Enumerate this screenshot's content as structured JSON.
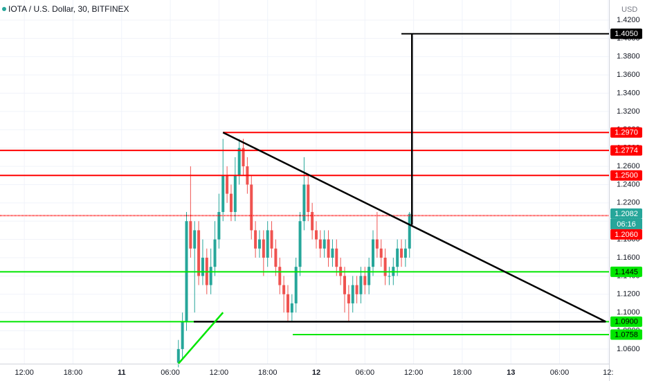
{
  "chart_data": {
    "type": "candlestick",
    "title": "IOTA / U.S. Dollar, 30, BITFINEX",
    "y_axis_label": "USD",
    "grid": true,
    "up_color": "#26a69a",
    "down_color": "#ef5350",
    "xlim": [
      9.0,
      84.1
    ],
    "ylim": [
      1.044,
      1.442
    ],
    "xticks": [
      {
        "value": 12,
        "label": "12:00"
      },
      {
        "value": 18,
        "label": "18:00"
      },
      {
        "value": 24,
        "label": "11"
      },
      {
        "value": 30,
        "label": "06:00"
      },
      {
        "value": 36,
        "label": "12:00"
      },
      {
        "value": 42,
        "label": "18:00"
      },
      {
        "value": 48,
        "label": "12"
      },
      {
        "value": 54,
        "label": "06:00"
      },
      {
        "value": 60,
        "label": "12:00"
      },
      {
        "value": 66,
        "label": "18:00"
      },
      {
        "value": 72,
        "label": "13"
      },
      {
        "value": 78,
        "label": "06:00"
      },
      {
        "value": 84,
        "label": "12:"
      }
    ],
    "yticks": [
      {
        "value": 1.06,
        "label": "1.0600"
      },
      {
        "value": 1.08,
        "label": "1.0800"
      },
      {
        "value": 1.1,
        "label": "1.1000"
      },
      {
        "value": 1.12,
        "label": "1.1200"
      },
      {
        "value": 1.14,
        "label": "1.1400"
      },
      {
        "value": 1.16,
        "label": "1.1600"
      },
      {
        "value": 1.18,
        "label": "1.1800"
      },
      {
        "value": 1.2,
        "label": "1.2000"
      },
      {
        "value": 1.22,
        "label": "1.2200"
      },
      {
        "value": 1.24,
        "label": "1.2400"
      },
      {
        "value": 1.26,
        "label": "1.2600"
      },
      {
        "value": 1.28,
        "label": "1.2800"
      },
      {
        "value": 1.3,
        "label": "1.3000"
      },
      {
        "value": 1.32,
        "label": "1.3200"
      },
      {
        "value": 1.34,
        "label": "1.3400"
      },
      {
        "value": 1.36,
        "label": "1.3600"
      },
      {
        "value": 1.38,
        "label": "1.3800"
      },
      {
        "value": 1.4,
        "label": "1.4000"
      },
      {
        "value": 1.42,
        "label": "1.4200"
      }
    ],
    "x": [
      31,
      31.5,
      32,
      32.5,
      33,
      33.5,
      34,
      34.5,
      35,
      35.5,
      36,
      36.5,
      37,
      37.5,
      38,
      38.5,
      39,
      39.5,
      40,
      40.5,
      41,
      41.5,
      42,
      42.5,
      43,
      43.5,
      44,
      44.5,
      45,
      45.5,
      46,
      46.5,
      47,
      47.5,
      48,
      48.5,
      49,
      49.5,
      50,
      50.5,
      51,
      51.5,
      52,
      52.5,
      53,
      53.5,
      54,
      54.5,
      55,
      55.5,
      56,
      56.5,
      57,
      57.5,
      58,
      58.5,
      59,
      59.5
    ],
    "open": [
      1.045,
      1.06,
      1.09,
      1.2,
      1.17,
      1.19,
      1.14,
      1.16,
      1.13,
      1.15,
      1.18,
      1.21,
      1.25,
      1.23,
      1.21,
      1.25,
      1.28,
      1.26,
      1.24,
      1.19,
      1.17,
      1.18,
      1.16,
      1.19,
      1.17,
      1.15,
      1.13,
      1.12,
      1.1,
      1.11,
      1.15,
      1.2,
      1.24,
      1.21,
      1.19,
      1.18,
      1.17,
      1.18,
      1.16,
      1.17,
      1.15,
      1.14,
      1.12,
      1.11,
      1.13,
      1.12,
      1.14,
      1.13,
      1.15,
      1.18,
      1.17,
      1.16,
      1.14,
      1.14,
      1.15,
      1.17,
      1.16,
      1.17
    ],
    "high": [
      1.07,
      1.1,
      1.21,
      1.26,
      1.2,
      1.2,
      1.18,
      1.17,
      1.17,
      1.2,
      1.23,
      1.29,
      1.26,
      1.24,
      1.27,
      1.29,
      1.29,
      1.27,
      1.25,
      1.2,
      1.19,
      1.19,
      1.2,
      1.2,
      1.18,
      1.16,
      1.14,
      1.13,
      1.12,
      1.16,
      1.21,
      1.27,
      1.25,
      1.22,
      1.2,
      1.19,
      1.19,
      1.19,
      1.18,
      1.18,
      1.16,
      1.15,
      1.13,
      1.14,
      1.14,
      1.15,
      1.15,
      1.16,
      1.19,
      1.21,
      1.18,
      1.17,
      1.15,
      1.16,
      1.18,
      1.18,
      1.18,
      1.21
    ],
    "low": [
      1.04,
      1.05,
      1.08,
      1.16,
      1.1,
      1.13,
      1.13,
      1.12,
      1.12,
      1.14,
      1.17,
      1.2,
      1.22,
      1.2,
      1.2,
      1.24,
      1.25,
      1.23,
      1.18,
      1.16,
      1.16,
      1.14,
      1.15,
      1.16,
      1.14,
      1.12,
      1.1,
      1.09,
      1.09,
      1.1,
      1.14,
      1.19,
      1.2,
      1.18,
      1.17,
      1.16,
      1.16,
      1.15,
      1.15,
      1.14,
      1.13,
      1.1,
      1.09,
      1.1,
      1.11,
      1.11,
      1.12,
      1.12,
      1.14,
      1.16,
      1.15,
      1.13,
      1.13,
      1.13,
      1.14,
      1.15,
      1.15,
      1.16
    ],
    "close": [
      1.06,
      1.09,
      1.2,
      1.17,
      1.19,
      1.14,
      1.16,
      1.13,
      1.15,
      1.18,
      1.21,
      1.25,
      1.23,
      1.21,
      1.25,
      1.28,
      1.26,
      1.24,
      1.19,
      1.17,
      1.18,
      1.16,
      1.19,
      1.17,
      1.15,
      1.13,
      1.12,
      1.1,
      1.11,
      1.15,
      1.2,
      1.24,
      1.21,
      1.19,
      1.18,
      1.17,
      1.18,
      1.16,
      1.17,
      1.15,
      1.14,
      1.12,
      1.11,
      1.13,
      1.12,
      1.14,
      1.13,
      1.15,
      1.18,
      1.17,
      1.16,
      1.14,
      1.14,
      1.15,
      1.17,
      1.16,
      1.17,
      1.208
    ],
    "last_price": {
      "value": 1.2082,
      "label": "1.2082",
      "color": "#26a69a",
      "countdown": "06:16"
    },
    "levels": [
      {
        "value": 1.405,
        "label": "1.4050",
        "color": "#000000",
        "text_color": "#ffffff",
        "from": 58.5
      },
      {
        "value": 1.297,
        "label": "1.2970",
        "color": "#ff0000",
        "text_color": "#ffffff",
        "from": 36.5
      },
      {
        "value": 1.2774,
        "label": "1.2774",
        "color": "#ff0000",
        "text_color": "#ffffff"
      },
      {
        "value": 1.25,
        "label": "1.2500",
        "color": "#ff0000",
        "text_color": "#ffffff"
      },
      {
        "value": 1.206,
        "label": "1.2060",
        "color": "#ff0000",
        "text_color": "#ffffff",
        "style": "dotted"
      },
      {
        "value": 1.1445,
        "label": "1.1445",
        "color": "#00e600",
        "text_color": "#000000"
      },
      {
        "value": 1.09,
        "label": "1.0900",
        "color": "#00e600",
        "text_color": "#000000"
      },
      {
        "value": 1.0758,
        "label": "1.0758",
        "color": "#00e600",
        "text_color": "#000000",
        "from": 45.1
      }
    ],
    "drawings": [
      {
        "color": "#000000",
        "x": [
          36.5,
          83.7
        ],
        "y": [
          1.297,
          1.09
        ]
      },
      {
        "color": "#000000",
        "x": [
          32.9,
          83.7
        ],
        "y": [
          1.09,
          1.09
        ]
      },
      {
        "color": "#000000",
        "x": [
          59.8,
          59.8
        ],
        "y": [
          1.196,
          1.405
        ]
      },
      {
        "color": "#00e600",
        "x": [
          31.0,
          36.5
        ],
        "y": [
          1.044,
          1.1
        ]
      }
    ]
  }
}
